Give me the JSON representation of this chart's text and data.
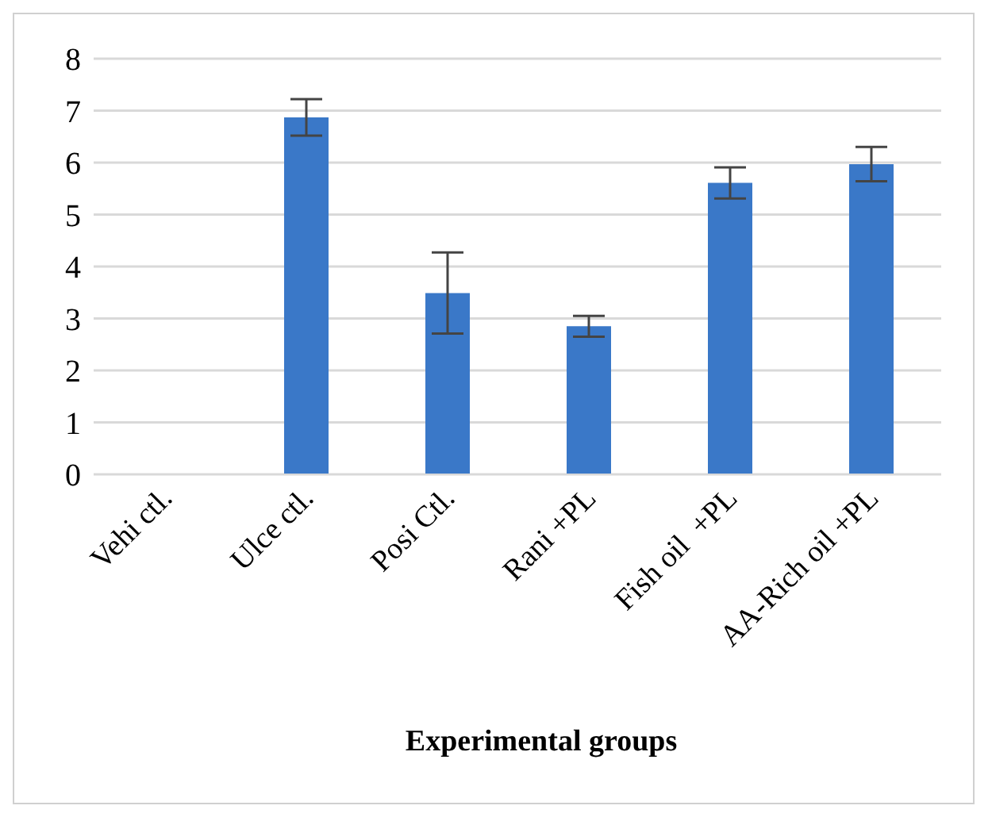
{
  "chart_data": {
    "type": "bar",
    "xlabel": "Experimental groups",
    "categories": [
      "Vehi ctl.",
      "Ulce ctl.",
      "Posi Ctl.",
      "Rani +PL",
      "Fish oil  +PL",
      "AA-Rich oil +PL"
    ],
    "values": [
      0,
      6.87,
      3.49,
      2.85,
      5.61,
      5.97
    ],
    "errors": [
      null,
      0.35,
      0.78,
      0.2,
      0.3,
      0.33
    ],
    "color": "#3a78c8",
    "ylim": [
      0,
      8
    ],
    "yticks": [
      0,
      1,
      2,
      3,
      4,
      5,
      6,
      7,
      8
    ],
    "grid": "y",
    "legend": false
  }
}
